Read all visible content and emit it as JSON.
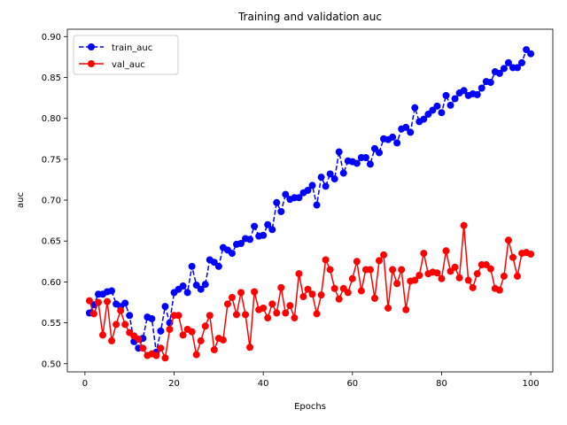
{
  "chart_data": {
    "type": "line",
    "title": "Training and validation auc",
    "xlabel": "Epochs",
    "ylabel": "auc",
    "x": [
      1,
      2,
      3,
      4,
      5,
      6,
      7,
      8,
      9,
      10,
      11,
      12,
      13,
      14,
      15,
      16,
      17,
      18,
      19,
      20,
      21,
      22,
      23,
      24,
      25,
      26,
      27,
      28,
      29,
      30,
      31,
      32,
      33,
      34,
      35,
      36,
      37,
      38,
      39,
      40,
      41,
      42,
      43,
      44,
      45,
      46,
      47,
      48,
      49,
      50,
      51,
      52,
      53,
      54,
      55,
      56,
      57,
      58,
      59,
      60,
      61,
      62,
      63,
      64,
      65,
      66,
      67,
      68,
      69,
      70,
      71,
      72,
      73,
      74,
      75,
      76,
      77,
      78,
      79,
      80,
      81,
      82,
      83,
      84,
      85,
      86,
      87,
      88,
      89,
      90,
      91,
      92,
      93,
      94,
      95,
      96,
      97,
      98,
      99,
      100
    ],
    "series": [
      {
        "name": "train_auc",
        "color": "#0000ff",
        "linestyle": "dashed",
        "values": [
          0.562,
          0.572,
          0.585,
          0.585,
          0.588,
          0.589,
          0.573,
          0.57,
          0.574,
          0.559,
          0.527,
          0.519,
          0.531,
          0.557,
          0.555,
          0.514,
          0.54,
          0.57,
          0.55,
          0.587,
          0.591,
          0.595,
          0.587,
          0.619,
          0.596,
          0.591,
          0.597,
          0.627,
          0.624,
          0.619,
          0.642,
          0.639,
          0.635,
          0.646,
          0.647,
          0.653,
          0.652,
          0.668,
          0.656,
          0.657,
          0.67,
          0.664,
          0.697,
          0.686,
          0.707,
          0.701,
          0.703,
          0.703,
          0.709,
          0.712,
          0.718,
          0.694,
          0.728,
          0.717,
          0.732,
          0.726,
          0.759,
          0.733,
          0.748,
          0.747,
          0.745,
          0.752,
          0.752,
          0.744,
          0.763,
          0.758,
          0.775,
          0.774,
          0.777,
          0.77,
          0.787,
          0.789,
          0.783,
          0.813,
          0.796,
          0.799,
          0.805,
          0.81,
          0.815,
          0.807,
          0.828,
          0.816,
          0.824,
          0.831,
          0.834,
          0.828,
          0.83,
          0.829,
          0.837,
          0.845,
          0.844,
          0.857,
          0.855,
          0.861,
          0.868,
          0.862,
          0.862,
          0.868,
          0.884,
          0.879
        ]
      },
      {
        "name": "val_auc",
        "color": "#ff0000",
        "linestyle": "solid",
        "values": [
          0.577,
          0.561,
          0.575,
          0.535,
          0.576,
          0.528,
          0.548,
          0.565,
          0.548,
          0.538,
          0.534,
          0.53,
          0.519,
          0.51,
          0.512,
          0.51,
          0.519,
          0.507,
          0.542,
          0.559,
          0.559,
          0.535,
          0.542,
          0.539,
          0.511,
          0.528,
          0.546,
          0.559,
          0.517,
          0.531,
          0.529,
          0.573,
          0.581,
          0.56,
          0.587,
          0.56,
          0.52,
          0.588,
          0.566,
          0.568,
          0.556,
          0.573,
          0.562,
          0.593,
          0.562,
          0.571,
          0.556,
          0.61,
          0.582,
          0.591,
          0.585,
          0.561,
          0.584,
          0.627,
          0.615,
          0.592,
          0.579,
          0.592,
          0.587,
          0.604,
          0.625,
          0.589,
          0.615,
          0.615,
          0.58,
          0.626,
          0.633,
          0.568,
          0.615,
          0.598,
          0.615,
          0.566,
          0.601,
          0.602,
          0.608,
          0.635,
          0.61,
          0.612,
          0.611,
          0.604,
          0.638,
          0.613,
          0.618,
          0.605,
          0.669,
          0.602,
          0.593,
          0.61,
          0.621,
          0.621,
          0.616,
          0.592,
          0.59,
          0.607,
          0.651,
          0.63,
          0.607,
          0.635,
          0.636,
          0.634
        ]
      }
    ],
    "xlim": [
      -3.95,
      104.95
    ],
    "ylim": [
      0.49,
      0.909
    ],
    "xticks": [
      0,
      20,
      40,
      60,
      80,
      100
    ],
    "yticks": [
      {
        "value": 0.5,
        "label": "0.50"
      },
      {
        "value": 0.55,
        "label": "0.55"
      },
      {
        "value": 0.6,
        "label": "0.60"
      },
      {
        "value": 0.65,
        "label": "0.65"
      },
      {
        "value": 0.7,
        "label": "0.70"
      },
      {
        "value": 0.75,
        "label": "0.75"
      },
      {
        "value": 0.8,
        "label": "0.80"
      },
      {
        "value": 0.85,
        "label": "0.85"
      },
      {
        "value": 0.9,
        "label": "0.90"
      }
    ],
    "legend": "upper left",
    "grid": false
  }
}
